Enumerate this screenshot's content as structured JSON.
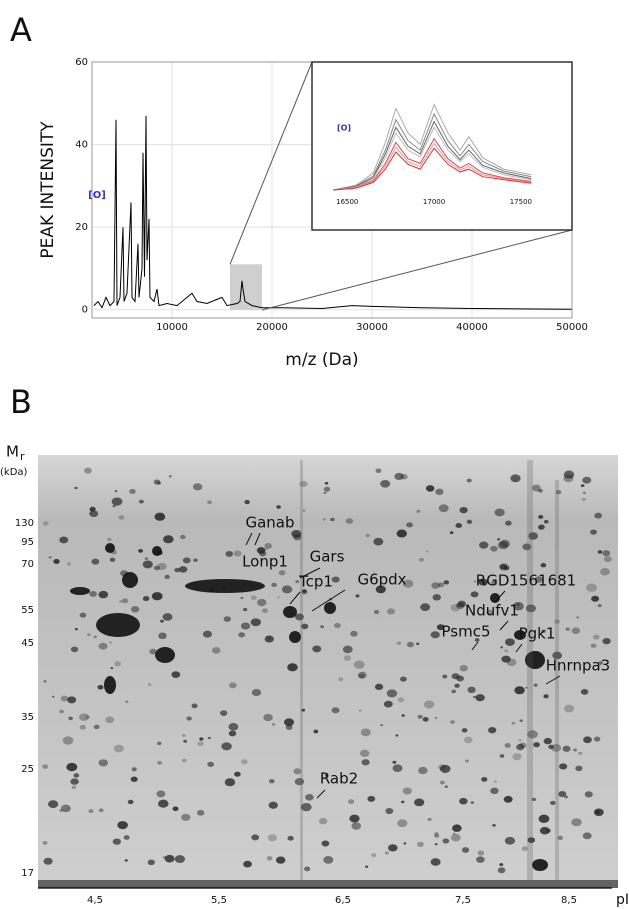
{
  "chart_data": [
    {
      "type": "line",
      "panel_label": "A",
      "y_label": "PEAK INTENSITY",
      "x_label": "m/z (Da)",
      "x": [
        2200,
        2600,
        3000,
        3400,
        3800,
        4200,
        4400,
        4500,
        4800,
        5100,
        5200,
        5500,
        5900,
        6000,
        6300,
        6600,
        6700,
        7000,
        7100,
        7250,
        7400,
        7500,
        7700,
        7800,
        8200,
        8500,
        8700,
        9500,
        10500,
        11500,
        12000,
        12500,
        13500,
        14500,
        15000,
        15500,
        16500,
        16800,
        17000,
        17100,
        17300,
        18000,
        19000,
        21000,
        25000,
        28000,
        30000,
        35000,
        40000,
        45000,
        50000
      ],
      "series": [
        {
          "color": "#000000",
          "values": [
            1,
            2,
            0.5,
            3,
            1,
            2,
            46,
            1,
            3,
            20,
            2,
            4,
            26,
            3,
            2,
            16,
            3,
            10,
            38,
            8,
            47,
            12,
            22,
            3,
            2,
            5,
            1,
            1.5,
            1,
            3,
            4,
            2,
            1.5,
            2.5,
            3,
            1,
            1.5,
            2,
            7,
            5,
            2,
            1,
            0.5,
            0.5,
            0.3,
            1,
            0.8,
            0.5,
            0.3,
            0.2,
            0.1
          ]
        }
      ],
      "xlim": [
        2000,
        50000
      ],
      "ylim": [
        -2,
        60
      ],
      "xticks": [
        10000,
        20000,
        30000,
        40000,
        50000
      ],
      "yticks": [
        0,
        20,
        40,
        60
      ],
      "grid": true,
      "highlight_x": [
        15800,
        19000
      ],
      "highlight_y": [
        0,
        11
      ]
    },
    {
      "type": "line",
      "x": [
        16420,
        16550,
        16650,
        16720,
        16780,
        16850,
        16920,
        17000,
        17080,
        17150,
        17200,
        17280,
        17400,
        17560
      ],
      "series": [
        {
          "color": "#aaaaaa",
          "values": [
            0,
            0.5,
            1.8,
            5,
            8.6,
            6,
            4.8,
            9,
            6,
            4.2,
            5.6,
            3.4,
            2.2,
            1.6
          ]
        },
        {
          "color": "#888888",
          "values": [
            0,
            0.4,
            1.5,
            4.2,
            7.4,
            5.2,
            4.2,
            8,
            5.2,
            3.6,
            4.8,
            3,
            2,
            1.4
          ]
        },
        {
          "color": "#666666",
          "values": [
            0,
            0.4,
            1.3,
            3.8,
            6.6,
            4.6,
            3.8,
            7.2,
            4.6,
            3.2,
            4.2,
            2.6,
            1.8,
            1.2
          ]
        },
        {
          "color": "#bbbbbb",
          "values": [
            0,
            0.3,
            1.2,
            3.4,
            6,
            4.2,
            3.5,
            6.6,
            4.2,
            3,
            3.8,
            2.4,
            1.6,
            1.1
          ]
        },
        {
          "color": "#e04848",
          "values": [
            0,
            0.3,
            1,
            2.8,
            5,
            3.3,
            2.8,
            5.4,
            3.3,
            2.3,
            2.8,
            1.8,
            1.3,
            0.9
          ]
        },
        {
          "color": "#f09a9a",
          "values": [
            0,
            0.3,
            0.9,
            2.5,
            4.5,
            3,
            2.5,
            4.9,
            3,
            2.1,
            2.5,
            1.6,
            1.2,
            0.8
          ]
        },
        {
          "color": "#d83030",
          "values": [
            0,
            0.2,
            0.8,
            2.2,
            4,
            2.7,
            2.2,
            4.4,
            2.7,
            1.9,
            2.2,
            1.4,
            1.1,
            0.7
          ]
        }
      ],
      "xlim": [
        16320,
        17760
      ],
      "ylim": [
        0,
        10
      ],
      "xticks": [
        16500,
        17000,
        17500
      ]
    }
  ],
  "gel": {
    "panel_label": "B",
    "y_label": "M",
    "y_label_sub": "r",
    "y_unit": "(kDa)",
    "mr_ticks": [
      "130",
      "95",
      "70",
      "55",
      "45",
      "35",
      "25",
      "17"
    ],
    "x_label": "pI",
    "pi_ticks": [
      "4,5",
      "5,5",
      "6,5",
      "7,5",
      "8,5"
    ],
    "proteins": [
      "Ganab",
      "Lonp1",
      "Gars",
      "Tcp1",
      "G6pdx",
      "RGD1561681",
      "Ndufv1",
      "Psmc5",
      "Pgk1",
      "Hnrnpa3",
      "Rab2"
    ]
  }
}
